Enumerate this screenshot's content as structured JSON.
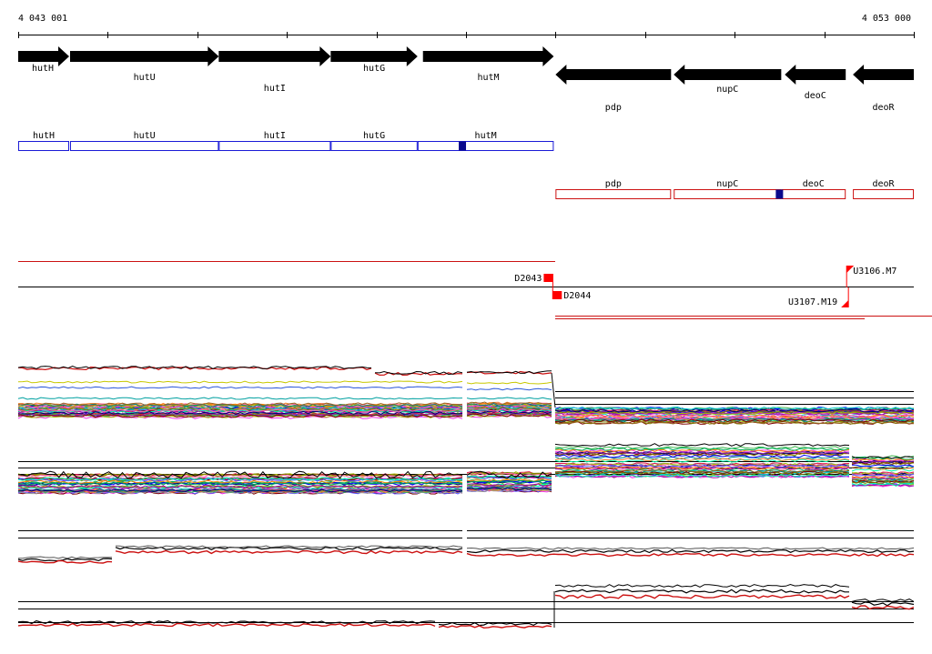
{
  "ruler": {
    "start_label": "4 043 001",
    "end_label": "4 053 000",
    "start": 4043001,
    "end": 4053000
  },
  "genes": [
    {
      "name": "hutH",
      "start": 4043001,
      "end": 4043570,
      "strand": "+"
    },
    {
      "name": "hutU",
      "start": 4043580,
      "end": 4045240,
      "strand": "+"
    },
    {
      "name": "hutI",
      "start": 4045240,
      "end": 4046490,
      "strand": "+"
    },
    {
      "name": "hutG",
      "start": 4046490,
      "end": 4047460,
      "strand": "+"
    },
    {
      "name": "hutM",
      "start": 4047520,
      "end": 4048980,
      "strand": "+"
    },
    {
      "name": "pdp",
      "start": 4049000,
      "end": 4050290,
      "strand": "-"
    },
    {
      "name": "nupC",
      "start": 4050320,
      "end": 4051520,
      "strand": "-"
    },
    {
      "name": "deoC",
      "start": 4051560,
      "end": 4052240,
      "strand": "-"
    },
    {
      "name": "deoR",
      "start": 4052320,
      "end": 4053000,
      "strand": "-"
    }
  ],
  "transcripts": [
    {
      "name": "hutH",
      "start": 4043001,
      "end": 4043570,
      "strand": "+"
    },
    {
      "name": "hutU",
      "start": 4043580,
      "end": 4045240,
      "strand": "+"
    },
    {
      "name": "hutI",
      "start": 4045240,
      "end": 4046490,
      "strand": "+"
    },
    {
      "name": "hutG",
      "start": 4046490,
      "end": 4047460,
      "strand": "+"
    },
    {
      "name": "hutM",
      "start": 4047460,
      "end": 4048980,
      "strand": "+"
    },
    {
      "name": "pdp",
      "start": 4049000,
      "end": 4050290,
      "strand": "-"
    },
    {
      "name": "nupC",
      "start": 4050320,
      "end": 4051520,
      "strand": "-"
    },
    {
      "name": "deoC",
      "start": 4051520,
      "end": 4052240,
      "strand": "-"
    },
    {
      "name": "deoR",
      "start": 4052320,
      "end": 4053000,
      "strand": "-"
    }
  ],
  "markers": [
    {
      "pos": 4047960,
      "strand": "+"
    },
    {
      "pos": 4051500,
      "strand": "-"
    }
  ],
  "probes": [
    {
      "name": "D2043",
      "pos": 4048970,
      "strand": "+"
    },
    {
      "name": "D2044",
      "pos": 4049050,
      "strand": "-"
    },
    {
      "name": "U3106.M7",
      "pos": 4052250,
      "strand": "+"
    },
    {
      "name": "U3107.M19",
      "pos": 4052270,
      "strand": "-"
    }
  ],
  "colors": {
    "gene_arrow": "#000000",
    "plus_strand": "#1a1ad6",
    "minus_strand": "#cc1111",
    "marker": "#0a0a8c",
    "probe": "#ff0000",
    "palette": [
      "#e6194b",
      "#3cb44b",
      "#0000ff",
      "#f58231",
      "#911eb4",
      "#00c8c8",
      "#f032e6",
      "#a0c000",
      "#008080",
      "#9a6324",
      "#800000",
      "#808000",
      "#000075",
      "#ff66aa",
      "#ff8800",
      "#00aa55",
      "#5555ff",
      "#aa00aa",
      "#00ffaa",
      "#999999"
    ]
  }
}
